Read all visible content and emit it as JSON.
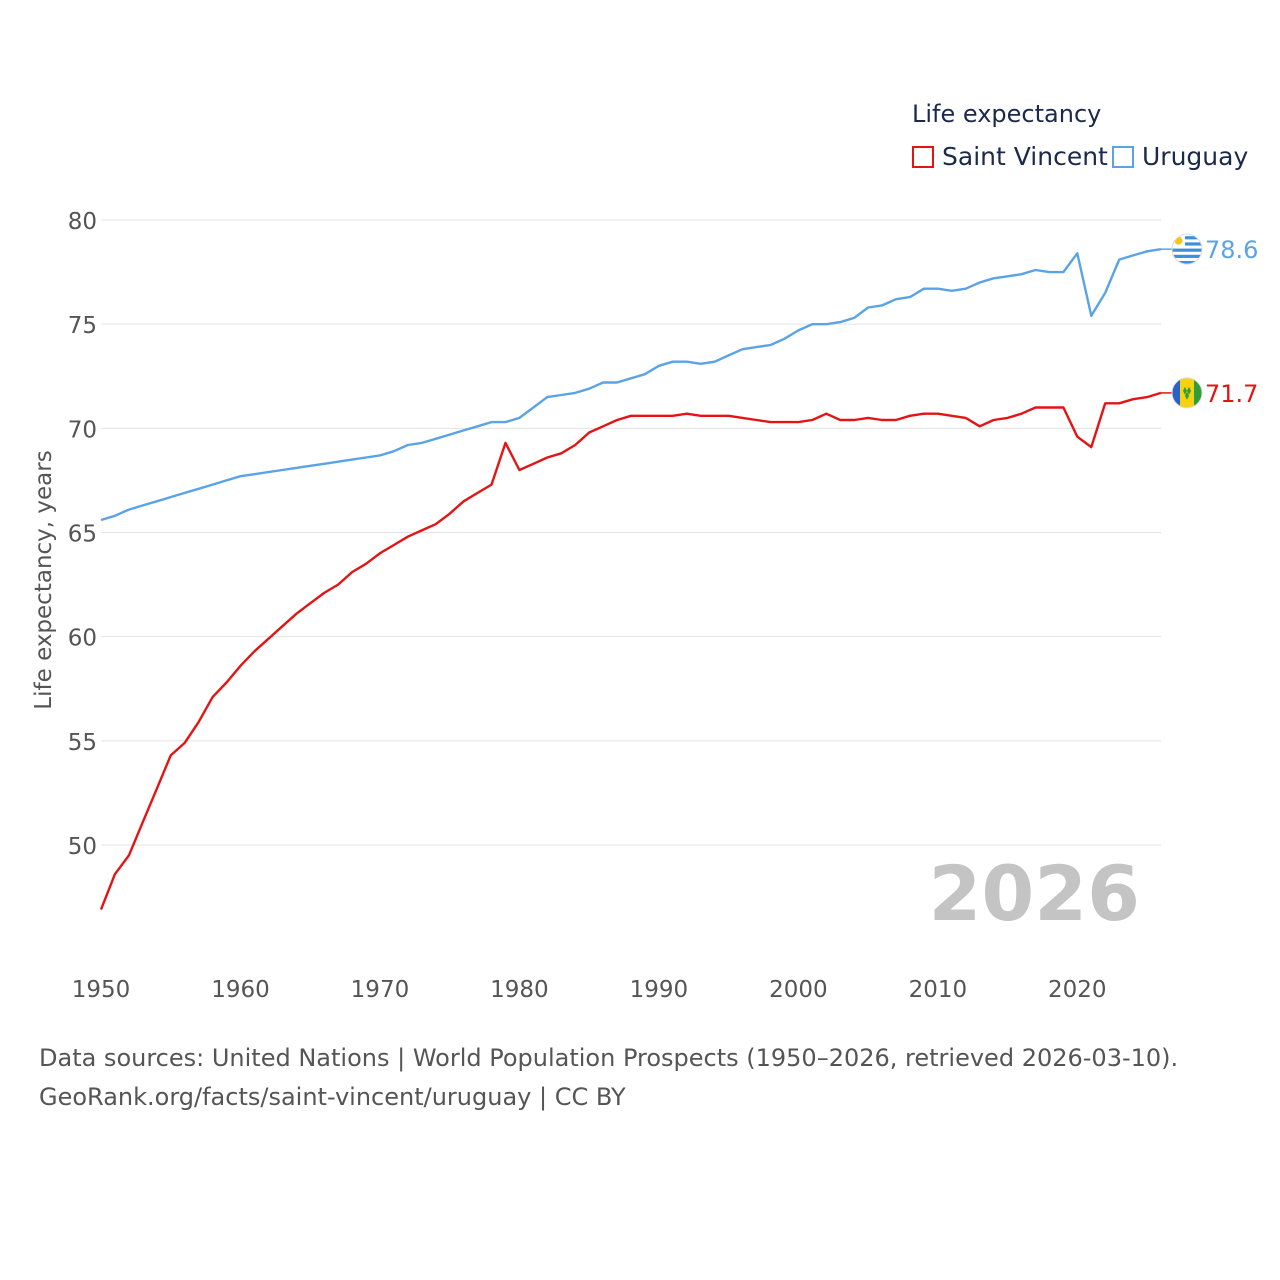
{
  "legend": {
    "title": "Life expectancy",
    "items": [
      {
        "label": "Saint Vincent",
        "color": "#e51414"
      },
      {
        "label": "Uruguay",
        "color": "#5aa3e6"
      }
    ]
  },
  "footer": {
    "line1": "Data sources: United Nations | World Population Prospects (1950–2026, retrieved 2026-03-10).",
    "line2": "GeoRank.org/facts/saint-vincent/uruguay | CC BY"
  },
  "chart_data": {
    "type": "line",
    "title": "Life expectancy",
    "xlabel": "",
    "ylabel": "Life expectancy, years",
    "year_label": "2026",
    "xlim": [
      1950,
      2026
    ],
    "ylim": [
      45,
      80
    ],
    "x_ticks": [
      "1950",
      "1960",
      "1970",
      "1980",
      "1990",
      "2000",
      "2010",
      "2020"
    ],
    "y_ticks": [
      "50",
      "55",
      "60",
      "65",
      "70",
      "75",
      "80"
    ],
    "grid": true,
    "legend_position": "top-right",
    "x": [
      1950,
      1951,
      1952,
      1953,
      1954,
      1955,
      1956,
      1957,
      1958,
      1959,
      1960,
      1961,
      1962,
      1963,
      1964,
      1965,
      1966,
      1967,
      1968,
      1969,
      1970,
      1971,
      1972,
      1973,
      1974,
      1975,
      1976,
      1977,
      1978,
      1979,
      1980,
      1981,
      1982,
      1983,
      1984,
      1985,
      1986,
      1987,
      1988,
      1989,
      1990,
      1991,
      1992,
      1993,
      1994,
      1995,
      1996,
      1997,
      1998,
      1999,
      2000,
      2001,
      2002,
      2003,
      2004,
      2005,
      2006,
      2007,
      2008,
      2009,
      2010,
      2011,
      2012,
      2013,
      2014,
      2015,
      2016,
      2017,
      2018,
      2019,
      2020,
      2021,
      2022,
      2023,
      2024,
      2025,
      2026
    ],
    "series": [
      {
        "name": "Saint Vincent",
        "color": "#e51414",
        "end_label": "71.7",
        "values": [
          46.9,
          48.6,
          49.5,
          51.1,
          52.7,
          54.3,
          54.9,
          55.9,
          57.1,
          57.8,
          58.6,
          59.3,
          59.9,
          60.5,
          61.1,
          61.6,
          62.1,
          62.5,
          63.1,
          63.5,
          64.0,
          64.4,
          64.8,
          65.1,
          65.4,
          65.9,
          66.5,
          66.9,
          67.3,
          69.3,
          68.0,
          68.3,
          68.6,
          68.8,
          69.2,
          69.8,
          70.1,
          70.4,
          70.6,
          70.6,
          70.6,
          70.6,
          70.7,
          70.6,
          70.6,
          70.6,
          70.5,
          70.4,
          70.3,
          70.3,
          70.3,
          70.4,
          70.7,
          70.4,
          70.4,
          70.5,
          70.4,
          70.4,
          70.6,
          70.7,
          70.7,
          70.6,
          70.5,
          70.1,
          70.4,
          70.5,
          70.7,
          71.0,
          71.0,
          71.0,
          69.6,
          69.1,
          71.2,
          71.2,
          71.4,
          71.5,
          71.7
        ]
      },
      {
        "name": "Uruguay",
        "color": "#5aa3e6",
        "end_label": "78.6",
        "values": [
          65.6,
          65.8,
          66.1,
          66.3,
          66.5,
          66.7,
          66.9,
          67.1,
          67.3,
          67.5,
          67.7,
          67.8,
          67.9,
          68.0,
          68.1,
          68.2,
          68.3,
          68.4,
          68.5,
          68.6,
          68.7,
          68.9,
          69.2,
          69.3,
          69.5,
          69.7,
          69.9,
          70.1,
          70.3,
          70.3,
          70.5,
          71.0,
          71.5,
          71.6,
          71.7,
          71.9,
          72.2,
          72.2,
          72.4,
          72.6,
          73.0,
          73.2,
          73.2,
          73.1,
          73.2,
          73.5,
          73.8,
          73.9,
          74.0,
          74.3,
          74.7,
          75.0,
          75.0,
          75.1,
          75.3,
          75.8,
          75.9,
          76.2,
          76.3,
          76.7,
          76.7,
          76.6,
          76.7,
          77.0,
          77.2,
          77.3,
          77.4,
          77.6,
          77.5,
          77.5,
          78.4,
          75.4,
          76.5,
          78.1,
          78.3,
          78.5,
          78.6
        ]
      }
    ]
  }
}
